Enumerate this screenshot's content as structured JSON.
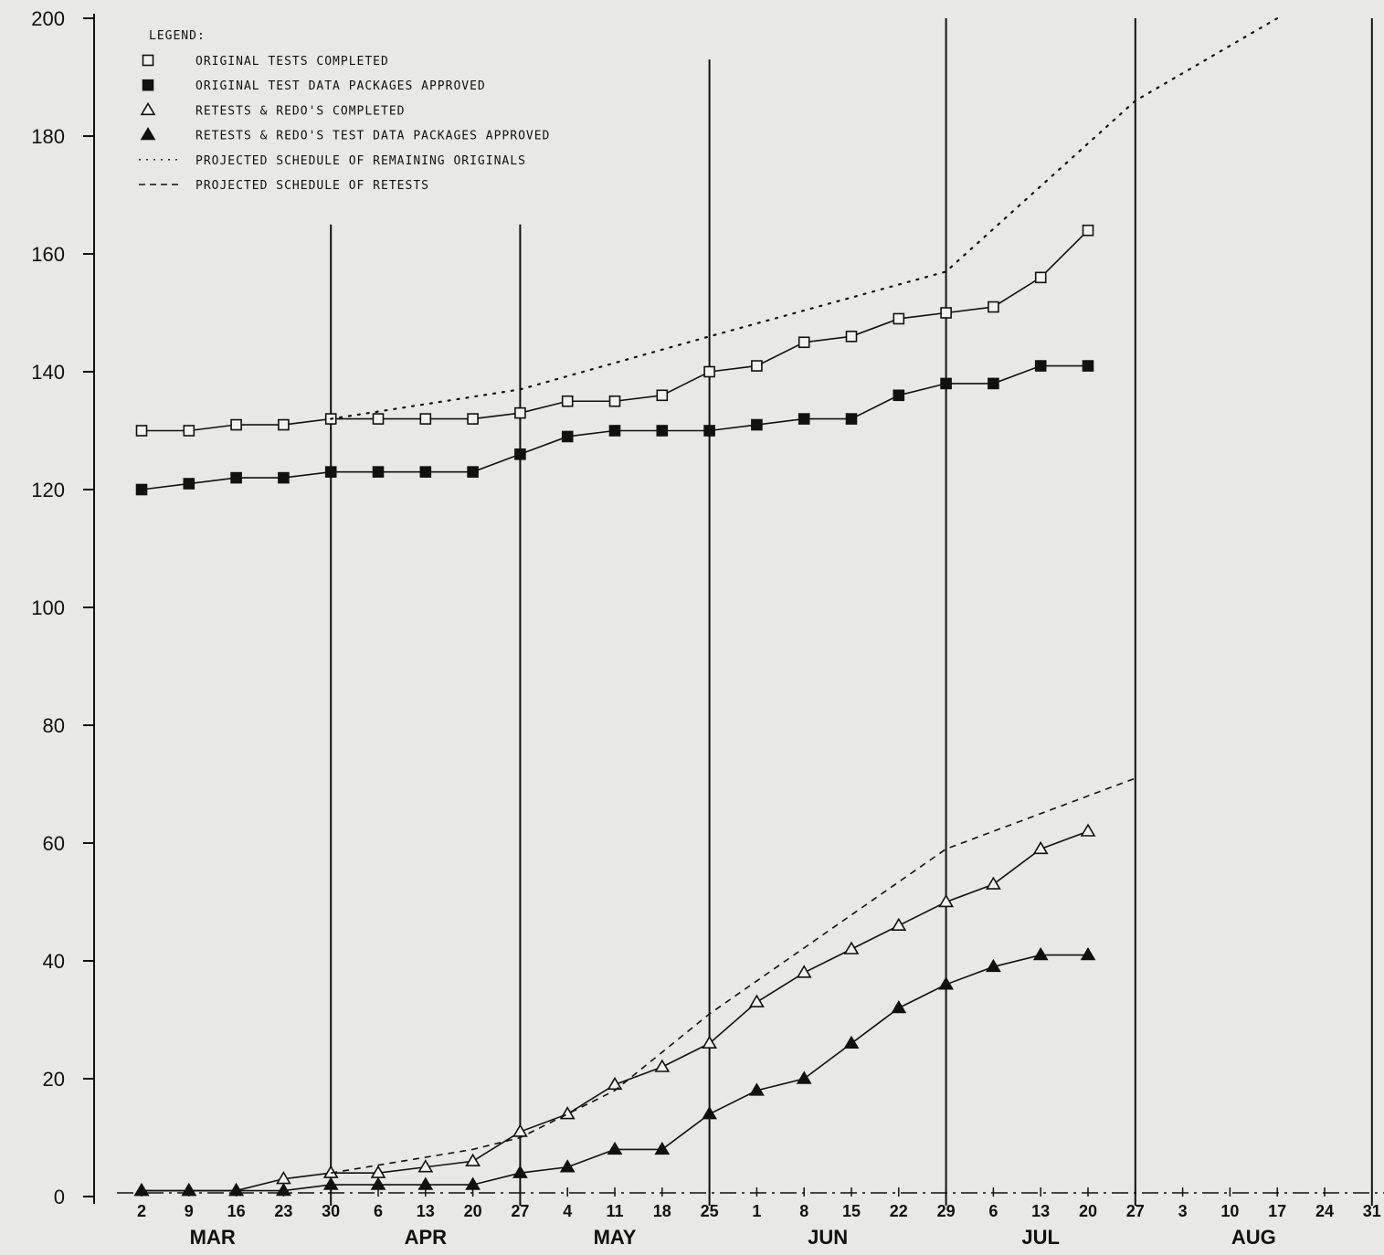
{
  "chart_data": {
    "type": "line",
    "title": "",
    "xlabel": "",
    "ylabel": "",
    "ylim": [
      0,
      200
    ],
    "y_ticks": [
      0,
      20,
      40,
      60,
      80,
      100,
      120,
      140,
      160,
      180,
      200
    ],
    "x_tick_labels": [
      "2",
      "9",
      "16",
      "23",
      "30",
      "6",
      "13",
      "20",
      "27",
      "4",
      "11",
      "18",
      "25",
      "1",
      "8",
      "15",
      "22",
      "29",
      "6",
      "13",
      "20",
      "27",
      "3",
      "10",
      "17",
      "24",
      "31"
    ],
    "months": [
      {
        "label": "MAR",
        "center_index": 1.5
      },
      {
        "label": "APR",
        "center_index": 6
      },
      {
        "label": "MAY",
        "center_index": 10
      },
      {
        "label": "JUN",
        "center_index": 14.5
      },
      {
        "label": "JUL",
        "center_index": 19
      },
      {
        "label": "AUG",
        "center_index": 23.5
      }
    ],
    "month_boundaries": [
      {
        "index": 4,
        "top": 165
      },
      {
        "index": 8,
        "top": 165
      },
      {
        "index": 12,
        "top": 193
      },
      {
        "index": 17,
        "top": 200
      },
      {
        "index": 21,
        "top": 200
      },
      {
        "index": 26,
        "top": 200
      }
    ],
    "legend_title": "LEGEND:",
    "series": [
      {
        "name": "ORIGINAL TESTS COMPLETED",
        "marker": "open-square",
        "line": "solid",
        "x": [
          0,
          1,
          2,
          3,
          4,
          5,
          6,
          7,
          8,
          9,
          10,
          11,
          12,
          13,
          14,
          15,
          16,
          17,
          18,
          19,
          20
        ],
        "values": [
          130,
          130,
          131,
          131,
          132,
          132,
          132,
          132,
          133,
          135,
          135,
          136,
          140,
          141,
          145,
          146,
          149,
          150,
          151,
          156,
          164
        ]
      },
      {
        "name": "ORIGINAL TEST DATA PACKAGES APPROVED",
        "marker": "filled-square",
        "line": "solid",
        "x": [
          0,
          1,
          2,
          3,
          4,
          5,
          6,
          7,
          8,
          9,
          10,
          11,
          12,
          13,
          14,
          15,
          16,
          17,
          18,
          19,
          20
        ],
        "values": [
          120,
          121,
          122,
          122,
          123,
          123,
          123,
          123,
          126,
          129,
          130,
          130,
          130,
          131,
          132,
          132,
          136,
          138,
          138,
          141,
          141
        ]
      },
      {
        "name": "RETESTS & REDO'S COMPLETED",
        "marker": "open-triangle",
        "line": "solid",
        "x": [
          0,
          1,
          2,
          3,
          4,
          5,
          6,
          7,
          8,
          9,
          10,
          11,
          12,
          13,
          14,
          15,
          16,
          17,
          18,
          19,
          20
        ],
        "values": [
          1,
          1,
          1,
          3,
          4,
          4,
          5,
          6,
          11,
          14,
          19,
          22,
          26,
          33,
          38,
          42,
          46,
          50,
          53,
          59,
          62
        ]
      },
      {
        "name": "RETESTS & REDO'S TEST DATA PACKAGES APPROVED",
        "marker": "filled-triangle",
        "line": "solid",
        "x": [
          0,
          1,
          2,
          3,
          4,
          5,
          6,
          7,
          8,
          9,
          10,
          11,
          12,
          13,
          14,
          15,
          16,
          17,
          18,
          19,
          20
        ],
        "values": [
          1,
          1,
          1,
          1,
          2,
          2,
          2,
          2,
          4,
          5,
          8,
          8,
          14,
          18,
          20,
          26,
          32,
          36,
          39,
          41,
          41
        ]
      },
      {
        "name": "PROJECTED SCHEDULE OF REMAINING ORIGINALS",
        "marker": "none",
        "line": "dotted",
        "x": [
          4,
          8,
          12,
          17,
          21,
          24
        ],
        "values": [
          132,
          137,
          146,
          157,
          186,
          200
        ]
      },
      {
        "name": "PROJECTED SCHEDULE OF RETESTS",
        "marker": "none",
        "line": "dashed",
        "x": [
          4,
          7,
          8,
          10,
          12,
          17,
          21
        ],
        "values": [
          4,
          8,
          10,
          18,
          31,
          59,
          71
        ]
      }
    ]
  }
}
